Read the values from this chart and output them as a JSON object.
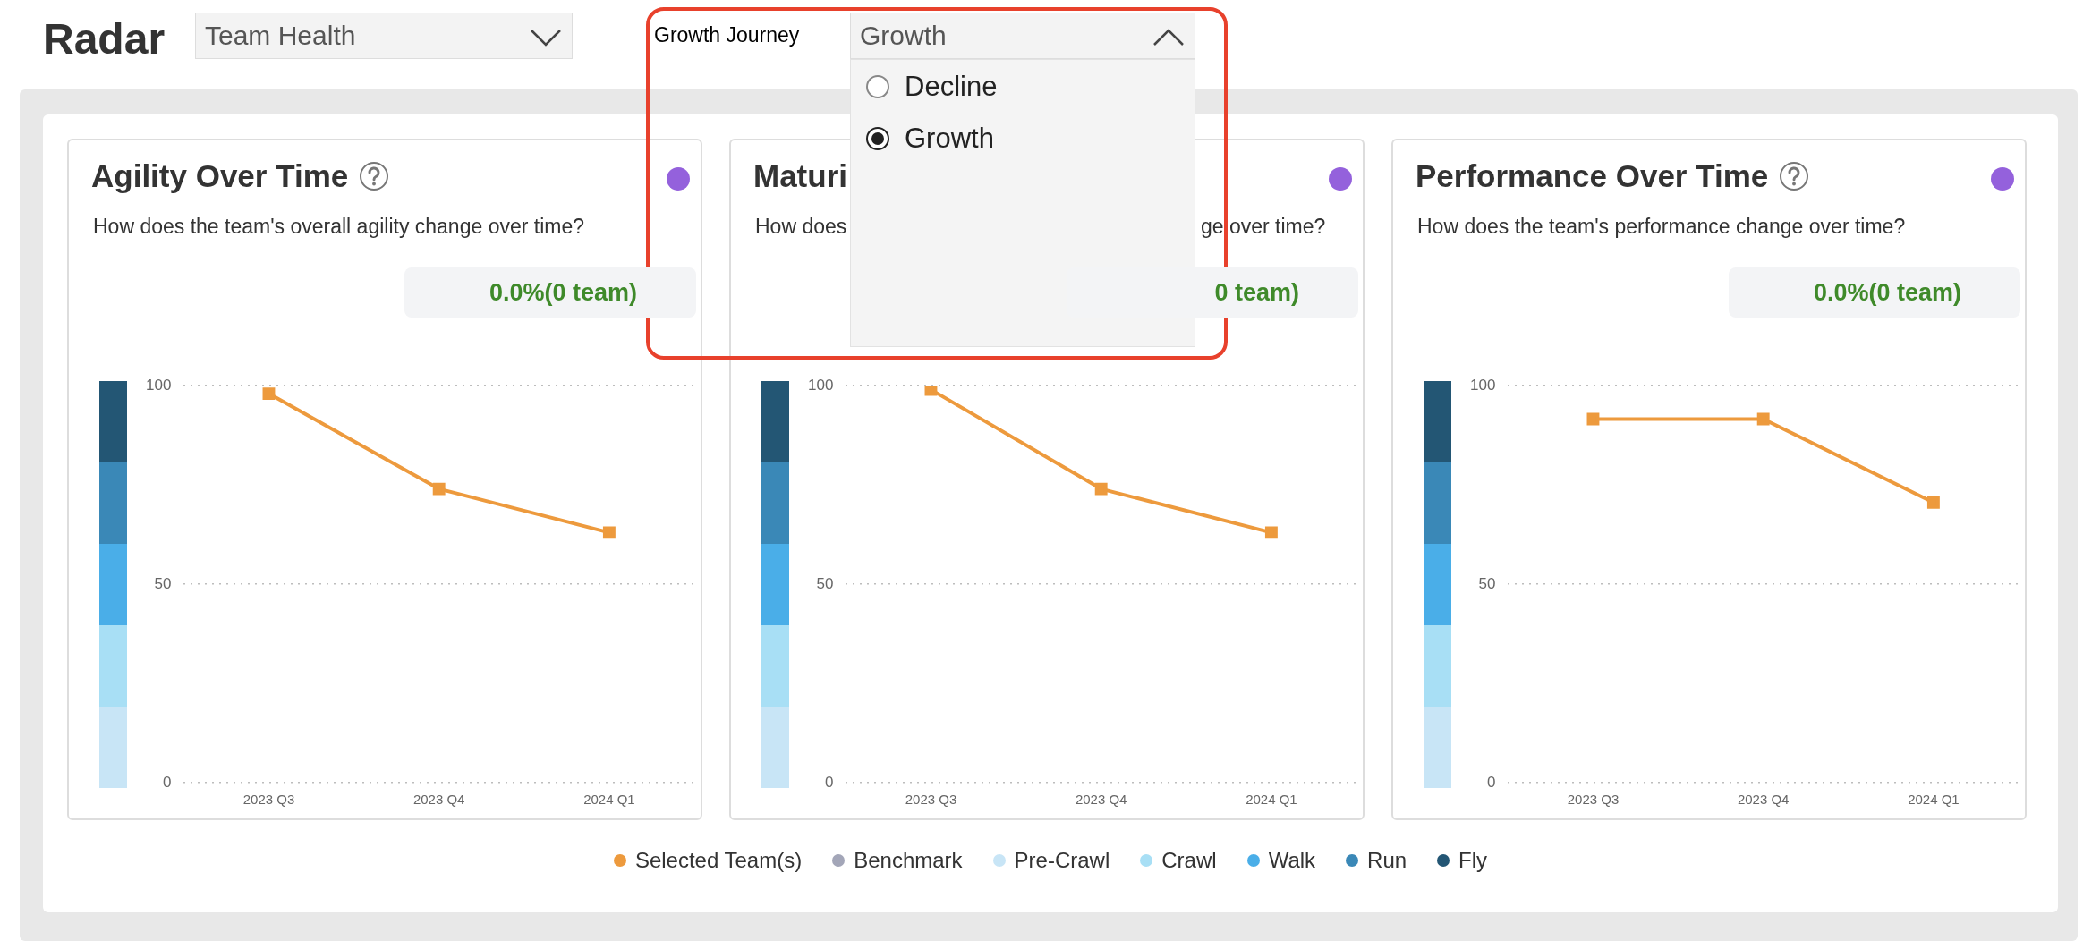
{
  "chart_data": [
    {
      "type": "other",
      "title": "Radar",
      "annotations": [
        "Team Health",
        "Growth Journey",
        "Growth",
        "Decline",
        "Growth"
      ]
    },
    {
      "type": "line",
      "title": "Agility Over Time",
      "subtitle": "How does the team's overall agility change over time?",
      "annotations": [
        "0.0%(0 team)"
      ],
      "categories": [
        "2023 Q3",
        "2023 Q4",
        "2024 Q1"
      ],
      "series": [
        {
          "name": "Selected Team(s)",
          "color": "#ed9a3d",
          "values": [
            98,
            74,
            63
          ]
        },
        {
          "name": "Benchmark",
          "color": "#a3a6b8",
          "values": [
            null,
            null,
            null
          ]
        },
        {
          "name": "Pre-Crawl",
          "color": "#c8e5f6",
          "values": [
            null,
            null,
            null
          ]
        },
        {
          "name": "Crawl",
          "color": "#a8dff5",
          "values": [
            null,
            null,
            null
          ]
        },
        {
          "name": "Walk",
          "color": "#4aaee8",
          "values": [
            null,
            null,
            null
          ]
        },
        {
          "name": "Run",
          "color": "#3a88b7",
          "values": [
            null,
            null,
            null
          ]
        },
        {
          "name": "Fly",
          "color": "#235674",
          "values": [
            null,
            null,
            null
          ]
        }
      ],
      "ylim": [
        0,
        100
      ],
      "yticks": [
        0,
        50,
        100
      ],
      "grid": "y",
      "legend": "bottom",
      "marker": "square"
    },
    {
      "type": "line",
      "title": "Maturi",
      "subtitle": "How does",
      "annotations": [
        "ge over time?",
        "0 team)"
      ],
      "categories": [
        "2023 Q3",
        "2023 Q4",
        "2024 Q1"
      ],
      "series": [
        {
          "color": "#ed9a3d",
          "values": [
            99,
            74,
            63
          ]
        }
      ],
      "ylim": [
        0,
        100
      ],
      "yticks": [
        0,
        50,
        100
      ],
      "grid": "y",
      "marker": "square"
    },
    {
      "type": "line",
      "title": "Performance Over Time",
      "subtitle": "How does the team's performance change over time?",
      "annotations": [
        "0.0%(0 team)"
      ],
      "categories": [
        "2023 Q3",
        "2023 Q4",
        "2024 Q1"
      ],
      "series": [
        {
          "color": "#ed9a3d",
          "values": [
            91.6,
            91.6,
            70.6
          ]
        }
      ],
      "ylim": [
        0,
        100
      ],
      "yticks": [
        0,
        50,
        100
      ],
      "grid": "y",
      "marker": "square"
    }
  ]
}
